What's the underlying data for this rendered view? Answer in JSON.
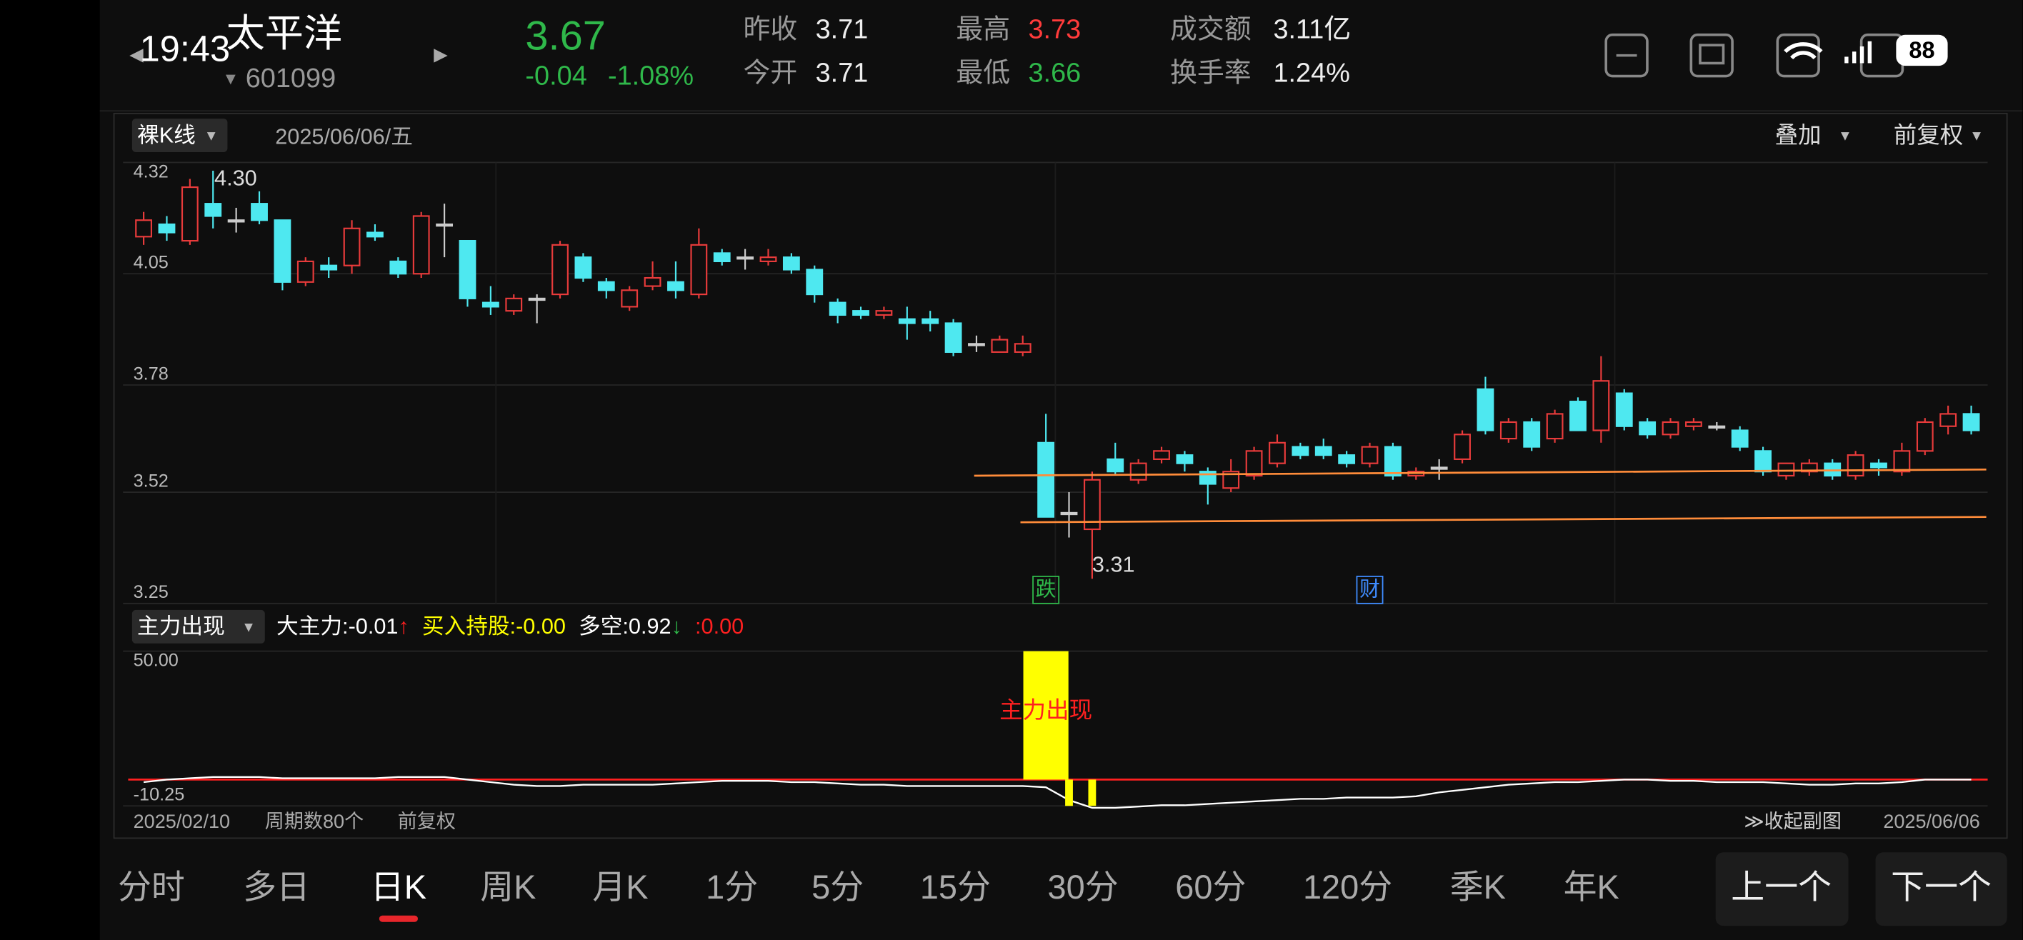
{
  "status_bar": {
    "time": "19:43",
    "battery": "88"
  },
  "header": {
    "name": "太平洋",
    "code": "601099",
    "price": "3.67",
    "change": "-0.04",
    "change_pct": "-1.08%",
    "stats": [
      {
        "label": "昨收",
        "value": "3.71"
      },
      {
        "label": "今开",
        "value": "3.71"
      },
      {
        "label": "最高",
        "value": "3.73"
      },
      {
        "label": "最低",
        "value": "3.66"
      },
      {
        "label": "成交额",
        "value": "3.11亿"
      },
      {
        "label": "换手率",
        "value": "1.24%"
      }
    ]
  },
  "toolbar": {
    "kline_mode": "裸K线",
    "date": "2025/06/06/五",
    "overlay": "叠加",
    "adjust": "前复权"
  },
  "chart_data": [
    {
      "type": "candlestick",
      "up_color": "#e83b3b",
      "down_color": "#4ee8f0",
      "flat_color": "#cccccc",
      "ylim": [
        3.25,
        4.32
      ],
      "yticks": [
        4.32,
        4.05,
        3.78,
        3.52,
        3.25
      ],
      "grid": true,
      "open": [
        4.14,
        4.17,
        4.13,
        4.22,
        4.18,
        4.22,
        4.18,
        4.03,
        4.07,
        4.07,
        4.15,
        4.08,
        4.05,
        4.17,
        4.13,
        3.98,
        3.96,
        3.99,
        4.0,
        4.09,
        4.03,
        3.97,
        4.02,
        4.03,
        4.0,
        4.1,
        4.09,
        4.08,
        4.09,
        4.06,
        3.98,
        3.96,
        3.95,
        3.94,
        3.94,
        3.93,
        3.88,
        3.86,
        3.86,
        3.64,
        3.47,
        3.43,
        3.6,
        3.55,
        3.6,
        3.61,
        3.57,
        3.53,
        3.56,
        3.59,
        3.63,
        3.63,
        3.61,
        3.59,
        3.63,
        3.56,
        3.58,
        3.6,
        3.77,
        3.65,
        3.69,
        3.65,
        3.74,
        3.67,
        3.76,
        3.69,
        3.66,
        3.68,
        3.68,
        3.67,
        3.62,
        3.56,
        3.57,
        3.59,
        3.56,
        3.59,
        3.57,
        3.62,
        3.68,
        3.71
      ],
      "high": [
        4.2,
        4.19,
        4.28,
        4.3,
        4.21,
        4.25,
        4.18,
        4.09,
        4.09,
        4.18,
        4.17,
        4.09,
        4.2,
        4.22,
        4.13,
        4.02,
        4.0,
        4.0,
        4.13,
        4.1,
        4.04,
        4.02,
        4.08,
        4.08,
        4.16,
        4.11,
        4.11,
        4.11,
        4.1,
        4.07,
        3.99,
        3.97,
        3.97,
        3.97,
        3.96,
        3.94,
        3.9,
        3.9,
        3.9,
        3.71,
        3.52,
        3.57,
        3.64,
        3.6,
        3.63,
        3.62,
        3.58,
        3.6,
        3.63,
        3.66,
        3.64,
        3.65,
        3.62,
        3.64,
        3.64,
        3.58,
        3.6,
        3.67,
        3.8,
        3.7,
        3.7,
        3.72,
        3.75,
        3.85,
        3.77,
        3.7,
        3.7,
        3.7,
        3.69,
        3.68,
        3.63,
        3.59,
        3.6,
        3.6,
        3.62,
        3.6,
        3.64,
        3.7,
        3.73,
        3.73
      ],
      "low": [
        4.12,
        4.13,
        4.12,
        4.16,
        4.15,
        4.17,
        4.01,
        4.02,
        4.04,
        4.05,
        4.13,
        4.04,
        4.04,
        4.09,
        3.97,
        3.95,
        3.95,
        3.93,
        3.99,
        4.03,
        3.99,
        3.96,
        4.01,
        3.99,
        3.99,
        4.07,
        4.06,
        4.07,
        4.05,
        3.98,
        3.93,
        3.94,
        3.94,
        3.89,
        3.91,
        3.85,
        3.86,
        3.86,
        3.85,
        3.46,
        3.41,
        3.31,
        3.56,
        3.54,
        3.59,
        3.57,
        3.49,
        3.52,
        3.55,
        3.58,
        3.6,
        3.6,
        3.58,
        3.58,
        3.55,
        3.55,
        3.55,
        3.59,
        3.66,
        3.64,
        3.62,
        3.64,
        3.67,
        3.64,
        3.67,
        3.65,
        3.65,
        3.67,
        3.67,
        3.62,
        3.56,
        3.55,
        3.56,
        3.55,
        3.55,
        3.56,
        3.56,
        3.61,
        3.66,
        3.66
      ],
      "close": [
        4.18,
        4.15,
        4.26,
        4.19,
        4.18,
        4.18,
        4.03,
        4.08,
        4.06,
        4.16,
        4.14,
        4.05,
        4.19,
        4.17,
        3.99,
        3.97,
        3.99,
        3.99,
        4.12,
        4.04,
        4.01,
        4.01,
        4.04,
        4.01,
        4.12,
        4.08,
        4.09,
        4.09,
        4.06,
        4.0,
        3.95,
        3.95,
        3.96,
        3.93,
        3.93,
        3.86,
        3.88,
        3.89,
        3.88,
        3.46,
        3.47,
        3.55,
        3.57,
        3.59,
        3.62,
        3.59,
        3.54,
        3.57,
        3.62,
        3.64,
        3.61,
        3.61,
        3.59,
        3.63,
        3.56,
        3.57,
        3.58,
        3.66,
        3.67,
        3.69,
        3.63,
        3.71,
        3.67,
        3.79,
        3.68,
        3.66,
        3.69,
        3.69,
        3.68,
        3.63,
        3.57,
        3.59,
        3.59,
        3.56,
        3.61,
        3.58,
        3.62,
        3.69,
        3.71,
        3.67
      ],
      "max_label": {
        "index": 3,
        "text": "4.30"
      },
      "min_label": {
        "index": 41,
        "text": "3.31"
      },
      "markers": [
        {
          "index": 39,
          "text": "跌",
          "color": "#2fb84a"
        },
        {
          "index": 53,
          "text": "财",
          "color": "#3f8cff"
        }
      ],
      "trendlines": [
        {
          "color": "#ff8c3a",
          "x": [
            35.9,
            79.65
          ],
          "values": [
            3.56,
            3.575
          ]
        },
        {
          "color": "#ff8c3a",
          "x": [
            37.9,
            79.65
          ],
          "values": [
            3.447,
            3.46
          ]
        }
      ]
    },
    {
      "type": "line",
      "title": "主力出现",
      "annotation": {
        "index": 39,
        "text": "主力出现",
        "color": "#ff2020"
      },
      "ylim": [
        -10.25,
        50
      ],
      "yticks": [
        {
          "value": 50,
          "label": "50.00"
        },
        -10.25
      ],
      "series": [
        {
          "name": "大主力",
          "color": "#ffffff",
          "value_text": ":-0.01",
          "arrow": "↑",
          "arrow_color": "#ff2020",
          "values": [
            -1,
            0,
            0.5,
            1,
            1,
            1,
            0.5,
            0.5,
            0.5,
            0.5,
            0.5,
            1,
            1,
            1,
            0,
            -1,
            -2,
            -2.5,
            -2.5,
            -2,
            -2,
            -2,
            -2,
            -1.5,
            -1,
            -0.5,
            -0.5,
            -0.5,
            -1,
            -1,
            -1.5,
            -2,
            -2,
            -2.5,
            -2.5,
            -2.5,
            -2.5,
            -2.5,
            -2.5,
            -3,
            -8,
            -11,
            -11,
            -10.5,
            -10,
            -10,
            -9.5,
            -9,
            -8.5,
            -8,
            -7.5,
            -7.5,
            -7,
            -7,
            -7,
            -6.5,
            -5,
            -4,
            -3,
            -2,
            -1.5,
            -1,
            -1,
            -0.5,
            0,
            0,
            -0.5,
            -0.5,
            -1,
            -1,
            -1,
            -1.5,
            -2,
            -2,
            -1.5,
            -1.5,
            -1,
            0,
            0,
            -0.01
          ]
        },
        {
          "name": "买入持股",
          "color": "#ffff00",
          "value_text": ":-0.00",
          "kind": "bar",
          "values": [
            null,
            null,
            null,
            null,
            null,
            null,
            null,
            null,
            null,
            null,
            null,
            null,
            null,
            null,
            null,
            null,
            null,
            null,
            null,
            null,
            null,
            null,
            null,
            null,
            null,
            null,
            null,
            null,
            null,
            null,
            null,
            null,
            null,
            null,
            null,
            null,
            null,
            null,
            null,
            50,
            -10.25,
            -10.25,
            null,
            null,
            null,
            null,
            null,
            null,
            null,
            null,
            null,
            null,
            null,
            null,
            null,
            null,
            null,
            null,
            null,
            null,
            null,
            null,
            null,
            null,
            null,
            null,
            null,
            null,
            null,
            null,
            null,
            null,
            null,
            null,
            null,
            null,
            null,
            null,
            null,
            null
          ]
        },
        {
          "name": "多空",
          "color": "#ffffff",
          "value_text": ":0.92",
          "arrow": "↓",
          "arrow_color": "#2fb84a"
        },
        {
          "color": "#ff2020",
          "value_text": ":0.00",
          "level": 0
        }
      ]
    }
  ],
  "footer": {
    "start_date": "2025/02/10",
    "periods": "周期数80个",
    "adjust": "前复权",
    "collapse": "≫收起副图",
    "end_date": "2025/06/06"
  },
  "tabs": [
    "分时",
    "多日",
    "日K",
    "周K",
    "月K",
    "1分",
    "5分",
    "15分",
    "30分",
    "60分",
    "120分",
    "季K",
    "年K"
  ],
  "active_tab": 2,
  "nav_buttons": [
    "上一个",
    "下一个"
  ]
}
